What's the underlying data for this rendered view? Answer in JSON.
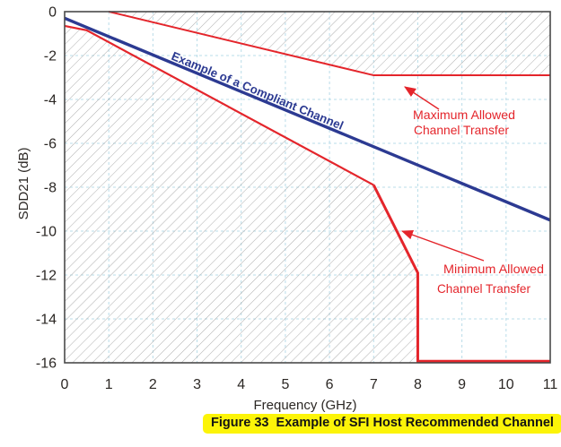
{
  "figure": {
    "caption": "Figure 33  Example of SFI Host Recommended Channel"
  },
  "annotations": {
    "compliant": "Example of a Compliant Channel",
    "max_line1": "Maximum Allowed",
    "max_line2": "Channel Transfer",
    "min_line1": "Minimum Allowed",
    "min_line2": "Channel Transfer"
  },
  "colors": {
    "mask_red": "#e4252b",
    "compliant_blue": "#2c3a92",
    "grid_blue": "#b9dce8",
    "hatch_gray": "#adadad",
    "caption_highlight": "#fcf408",
    "border_gray": "#4a4a4a"
  },
  "chart_data": {
    "type": "line",
    "title": "Example of SFI Host Recommended Channel",
    "xlabel": "Frequency (GHz)",
    "ylabel": "SDD21 (dB)",
    "xlim": [
      0,
      11
    ],
    "ylim": [
      -16,
      0
    ],
    "x_ticks": [
      0,
      1,
      2,
      3,
      4,
      5,
      6,
      7,
      8,
      9,
      10,
      11
    ],
    "y_ticks": [
      0,
      -2,
      -4,
      -6,
      -8,
      -10,
      -12,
      -14,
      -16
    ],
    "grid": {
      "show": true,
      "style": "dashed",
      "color": "#b9dce8",
      "x_step_ghz": 1,
      "y_step_db": 2
    },
    "legend": "labels drawn inline on chart, no legend box",
    "series": [
      {
        "id": "max_line",
        "name": "Maximum Allowed Channel Transfer",
        "color": "#e4252b",
        "points": [
          [
            1,
            0
          ],
          [
            7,
            -2.9
          ],
          [
            11,
            -2.9
          ]
        ],
        "hatch_above": true
      },
      {
        "id": "compliant_line",
        "name": "Example of a Compliant Channel",
        "color": "#2c3a92",
        "points": [
          [
            0,
            -0.3
          ],
          [
            11,
            -9.5
          ]
        ]
      },
      {
        "id": "min_line",
        "name": "Minimum Allowed Channel Transfer",
        "color": "#e4252b",
        "points": [
          [
            0,
            -0.65
          ],
          [
            0.5,
            -0.85
          ],
          [
            7,
            -7.9
          ],
          [
            8,
            -11.9
          ],
          [
            8,
            -16
          ],
          [
            11,
            -16
          ]
        ],
        "hatch_below": true
      }
    ],
    "hatched_regions": [
      "above maximum allowed line",
      "below minimum allowed line"
    ]
  }
}
